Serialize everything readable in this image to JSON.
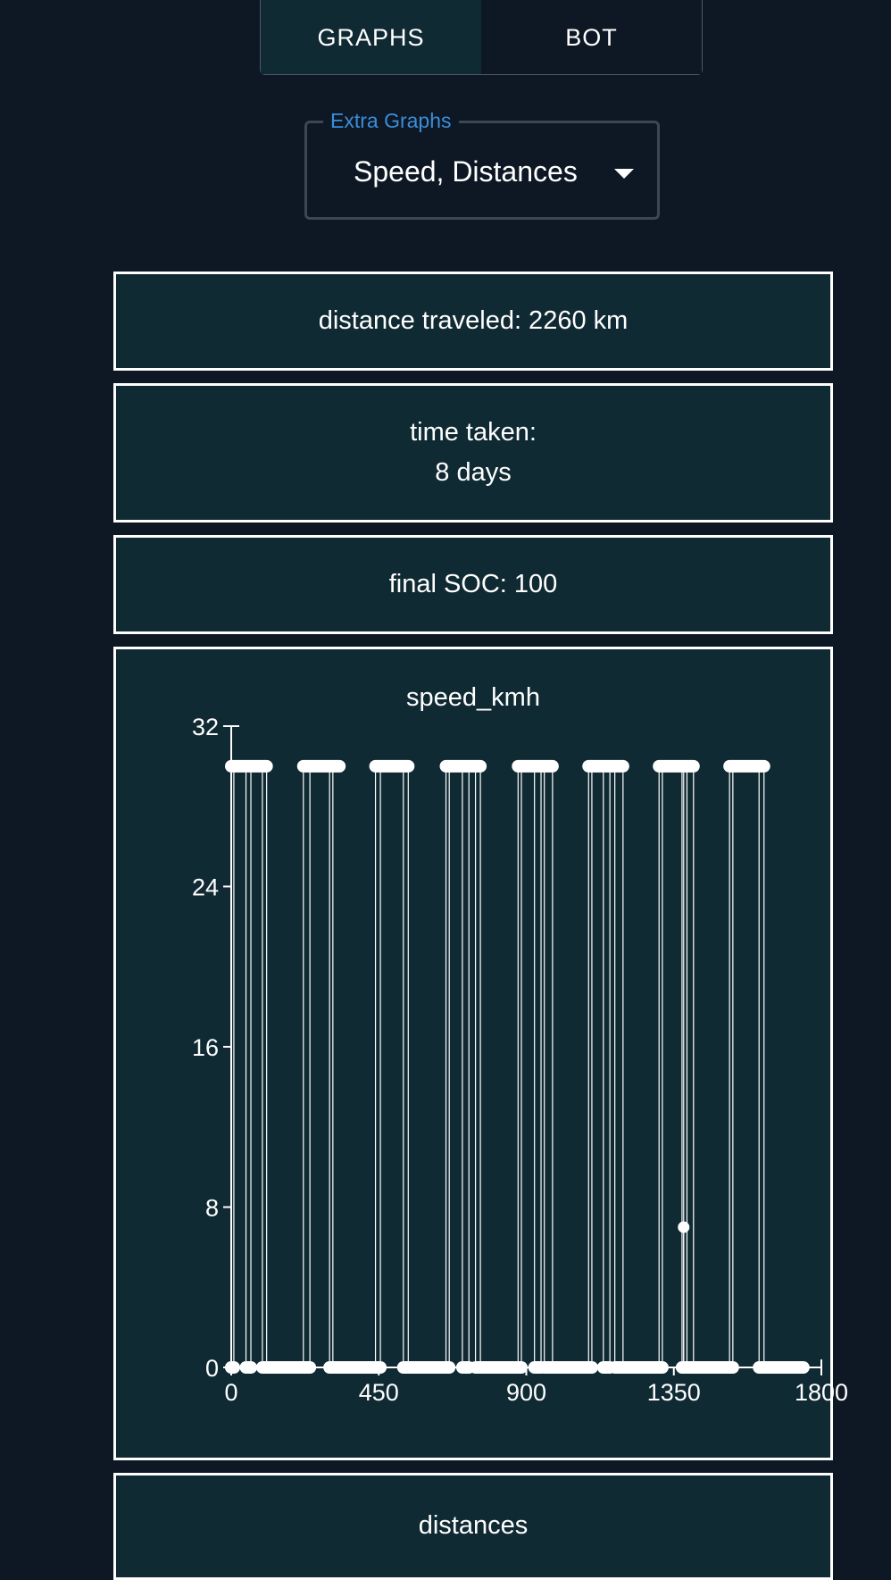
{
  "tabs": [
    {
      "label": "GRAPHS",
      "active": true
    },
    {
      "label": "BOT",
      "active": false
    }
  ],
  "extra_graphs": {
    "label": "Extra Graphs",
    "value": "Speed, Distances"
  },
  "stats": {
    "distance": "distance traveled: 2260 km",
    "time_label": "time taken:",
    "time_value": "8 days",
    "final_soc": "final SOC: 100"
  },
  "speed_chart": {
    "title": "speed_kmh",
    "chart_data": {
      "type": "scatter",
      "title": "speed_kmh",
      "xlim": [
        0,
        1800
      ],
      "ylim": [
        0,
        32
      ],
      "x_ticks": [
        "0",
        "450",
        "900",
        "1350",
        "1800"
      ],
      "y_ticks": [
        "0",
        "8",
        "16",
        "24",
        "32"
      ],
      "high_speed": 30,
      "segments": [
        {
          "x0": 0,
          "x1": 8,
          "y": 0
        },
        {
          "x0": 0,
          "x1": 108,
          "y": 30
        },
        {
          "x0": 45,
          "x1": 60,
          "y": 0
        },
        {
          "x0": 95,
          "x1": 240,
          "y": 0
        },
        {
          "x0": 220,
          "x1": 330,
          "y": 30
        },
        {
          "x0": 300,
          "x1": 455,
          "y": 0
        },
        {
          "x0": 440,
          "x1": 540,
          "y": 30
        },
        {
          "x0": 525,
          "x1": 665,
          "y": 0
        },
        {
          "x0": 655,
          "x1": 760,
          "y": 30
        },
        {
          "x0": 705,
          "x1": 725,
          "y": 0
        },
        {
          "x0": 745,
          "x1": 885,
          "y": 0
        },
        {
          "x0": 875,
          "x1": 980,
          "y": 30
        },
        {
          "x0": 925,
          "x1": 945,
          "y": 0
        },
        {
          "x0": 955,
          "x1": 1100,
          "y": 0
        },
        {
          "x0": 1090,
          "x1": 1195,
          "y": 30
        },
        {
          "x0": 1135,
          "x1": 1155,
          "y": 0
        },
        {
          "x0": 1170,
          "x1": 1315,
          "y": 0
        },
        {
          "x0": 1305,
          "x1": 1410,
          "y": 30
        },
        {
          "x0": 1375,
          "x1": 1530,
          "y": 0
        },
        {
          "x0": 1520,
          "x1": 1625,
          "y": 30
        },
        {
          "x0": 1610,
          "x1": 1745,
          "y": 0
        }
      ],
      "transitions": [
        0,
        8,
        45,
        60,
        95,
        108,
        220,
        240,
        300,
        310,
        440,
        455,
        525,
        540,
        655,
        665,
        705,
        725,
        745,
        760,
        875,
        885,
        925,
        945,
        955,
        980,
        1090,
        1100,
        1135,
        1155,
        1170,
        1195,
        1305,
        1315,
        1375,
        1380,
        1390,
        1410,
        1520,
        1530,
        1610,
        1625
      ],
      "outliers": [
        {
          "x": 1380,
          "y": 7
        }
      ]
    }
  },
  "distances_chart": {
    "title": "distances"
  }
}
